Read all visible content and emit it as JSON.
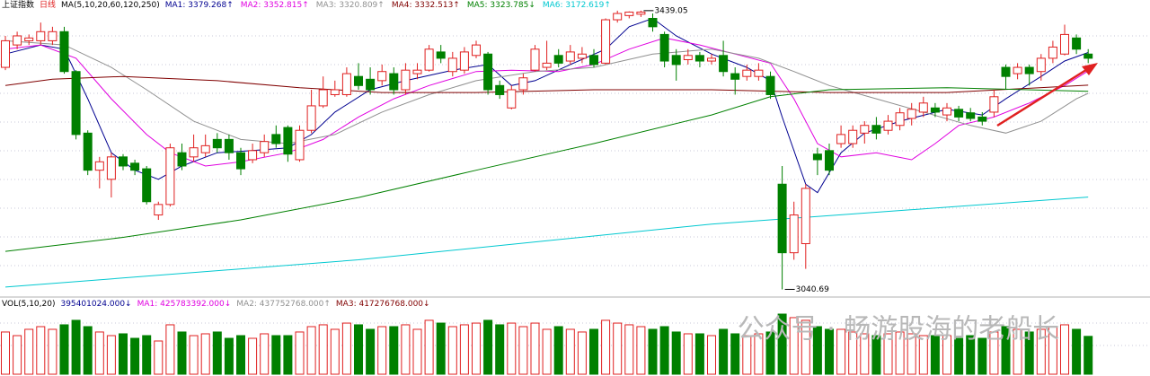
{
  "header": {
    "title": "上证指数",
    "period": "日线",
    "ma_params": "MA(5,10,20,60,120,250)"
  },
  "watermark": "公众号 · 畅游股海的老船长",
  "chart_data": [
    {
      "type": "candlestick",
      "ylim": [
        3031,
        3444
      ],
      "up_color": "#e02020",
      "down_color": "#008000",
      "high_label": "3439.05",
      "low_label": "3040.69",
      "open": [
        3358,
        3390,
        3396,
        3396,
        3396,
        3409,
        3352,
        3264,
        3211,
        3198,
        3230,
        3221,
        3213,
        3147,
        3162,
        3236,
        3230,
        3236,
        3255,
        3255,
        3236,
        3226,
        3236,
        3262,
        3272,
        3226,
        3268,
        3303,
        3319,
        3319,
        3345,
        3341,
        3339,
        3349,
        3326,
        3349,
        3354,
        3380,
        3352,
        3354,
        3375,
        3377,
        3332,
        3300,
        3326,
        3354,
        3358,
        3375,
        3367,
        3371,
        3375,
        3364,
        3426,
        3432,
        3434,
        3428,
        3405,
        3375,
        3369,
        3375,
        3367,
        3375,
        3349,
        3345,
        3345,
        3345,
        3191,
        3093,
        3106,
        3234,
        3239,
        3249,
        3249,
        3264,
        3275,
        3268,
        3275,
        3285,
        3294,
        3300,
        3290,
        3298,
        3293,
        3287,
        3294,
        3358,
        3349,
        3358,
        3352,
        3371,
        3377,
        3400,
        3377
      ],
      "high": [
        3403,
        3409,
        3405,
        3422,
        3416,
        3416,
        3354,
        3268,
        3230,
        3236,
        3234,
        3226,
        3217,
        3166,
        3249,
        3249,
        3262,
        3262,
        3264,
        3262,
        3243,
        3249,
        3262,
        3275,
        3275,
        3275,
        3326,
        3345,
        3339,
        3358,
        3364,
        3358,
        3362,
        3358,
        3364,
        3364,
        3390,
        3390,
        3380,
        3387,
        3396,
        3380,
        3339,
        3332,
        3349,
        3390,
        3396,
        3384,
        3390,
        3387,
        3384,
        3428,
        3439,
        3438,
        3439.05,
        3435,
        3409,
        3384,
        3384,
        3380,
        3377,
        3396,
        3358,
        3362,
        3364,
        3352,
        3217,
        3166,
        3191,
        3243,
        3249,
        3275,
        3275,
        3281,
        3287,
        3290,
        3300,
        3307,
        3316,
        3307,
        3307,
        3303,
        3300,
        3294,
        3326,
        3362,
        3364,
        3362,
        3377,
        3396,
        3419,
        3405,
        3384
      ],
      "low": [
        3354,
        3384,
        3390,
        3390,
        3390,
        3349,
        3255,
        3204,
        3185,
        3172,
        3211,
        3204,
        3162,
        3140,
        3159,
        3211,
        3223,
        3230,
        3236,
        3226,
        3204,
        3221,
        3230,
        3243,
        3223,
        3223,
        3264,
        3300,
        3316,
        3316,
        3326,
        3319,
        3332,
        3319,
        3319,
        3341,
        3352,
        3364,
        3345,
        3349,
        3371,
        3319,
        3313,
        3298,
        3319,
        3352,
        3354,
        3358,
        3362,
        3364,
        3358,
        3362,
        3422,
        3428,
        3430,
        3409,
        3358,
        3339,
        3362,
        3358,
        3362,
        3345,
        3319,
        3339,
        3339,
        3313,
        3040.69,
        3083,
        3070,
        3204,
        3204,
        3243,
        3243,
        3249,
        3255,
        3262,
        3268,
        3275,
        3287,
        3287,
        3281,
        3281,
        3281,
        3275,
        3287,
        3326,
        3341,
        3332,
        3339,
        3364,
        3375,
        3377,
        3364
      ],
      "close": [
        3396,
        3403,
        3400,
        3409,
        3409,
        3352,
        3262,
        3211,
        3223,
        3230,
        3217,
        3211,
        3166,
        3162,
        3243,
        3217,
        3243,
        3246,
        3243,
        3236,
        3213,
        3239,
        3252,
        3249,
        3234,
        3268,
        3303,
        3326,
        3326,
        3349,
        3332,
        3326,
        3352,
        3326,
        3354,
        3354,
        3384,
        3371,
        3371,
        3380,
        3390,
        3326,
        3319,
        3326,
        3343,
        3384,
        3364,
        3364,
        3380,
        3377,
        3362,
        3426,
        3435,
        3437,
        3437,
        3416,
        3367,
        3362,
        3375,
        3367,
        3371,
        3352,
        3341,
        3354,
        3354,
        3319,
        3093,
        3147,
        3185,
        3226,
        3211,
        3262,
        3268,
        3275,
        3264,
        3281,
        3293,
        3298,
        3307,
        3294,
        3300,
        3287,
        3285,
        3281,
        3316,
        3345,
        3358,
        3349,
        3371,
        3387,
        3405,
        3384,
        3371
      ],
      "series": [
        {
          "name": "MA1: 3379.268↑",
          "color": "#000090",
          "x": [
            0,
            3,
            5,
            7,
            9,
            11,
            13,
            15,
            18,
            21,
            24,
            26,
            28,
            31,
            34,
            38,
            41,
            43,
            45,
            48,
            51,
            53,
            55,
            57,
            60,
            63,
            65,
            66,
            68,
            69,
            71,
            73,
            76,
            80,
            83,
            85,
            88,
            90,
            92
          ],
          "values": [
            3377,
            3390,
            3384,
            3313,
            3236,
            3211,
            3198,
            3217,
            3236,
            3239,
            3243,
            3262,
            3294,
            3326,
            3339,
            3354,
            3362,
            3332,
            3339,
            3362,
            3384,
            3416,
            3428,
            3403,
            3377,
            3358,
            3339,
            3287,
            3191,
            3179,
            3236,
            3264,
            3281,
            3298,
            3290,
            3313,
            3345,
            3367,
            3379.268
          ]
        },
        {
          "name": "MA2: 3352.815↑",
          "color": "#e000e0",
          "x": [
            0,
            3,
            6,
            9,
            12,
            14,
            17,
            20,
            24,
            27,
            30,
            33,
            36,
            40,
            43,
            47,
            50,
            53,
            56,
            59,
            62,
            65,
            67,
            69,
            71,
            74,
            77,
            79,
            81,
            84,
            87,
            90,
            92
          ],
          "values": [
            3384,
            3390,
            3371,
            3313,
            3262,
            3236,
            3217,
            3223,
            3236,
            3255,
            3287,
            3313,
            3332,
            3352,
            3354,
            3352,
            3362,
            3384,
            3400,
            3390,
            3377,
            3364,
            3313,
            3249,
            3230,
            3236,
            3226,
            3249,
            3275,
            3287,
            3307,
            3332,
            3352.815
          ]
        },
        {
          "name": "MA3: 3320.809↑",
          "color": "#909090",
          "x": [
            0,
            5,
            9,
            12,
            16,
            20,
            24,
            28,
            32,
            36,
            40,
            45,
            50,
            55,
            60,
            64,
            67,
            70,
            74,
            78,
            82,
            85,
            88,
            91,
            92
          ],
          "values": [
            3396,
            3390,
            3358,
            3326,
            3281,
            3255,
            3249,
            3262,
            3294,
            3319,
            3339,
            3352,
            3358,
            3377,
            3384,
            3371,
            3352,
            3332,
            3313,
            3294,
            3275,
            3264,
            3281,
            3313,
            3320.809
          ]
        },
        {
          "name": "MA4: 3332.513↑",
          "color": "#800000",
          "x": [
            0,
            4,
            10,
            18,
            25,
            32,
            40,
            50,
            60,
            70,
            80,
            92
          ],
          "values": [
            3332,
            3341,
            3345,
            3339,
            3329,
            3322,
            3322,
            3326,
            3326,
            3322,
            3322,
            3332.513
          ]
        },
        {
          "name": "MA5: 3323.785↓",
          "color": "#008000",
          "x": [
            0,
            10,
            20,
            30,
            40,
            50,
            60,
            65,
            70,
            80,
            92
          ],
          "values": [
            3095,
            3115,
            3140,
            3172,
            3211,
            3249,
            3290,
            3316,
            3326,
            3329,
            3323.785
          ]
        },
        {
          "name": "MA6: 3172.619↑",
          "color": "#00c8d0",
          "x": [
            0,
            30,
            60,
            92
          ],
          "values": [
            3044,
            3083,
            3134,
            3172.619
          ]
        }
      ]
    },
    {
      "type": "bar",
      "title": "VOL(5,10,20)",
      "ylim": [
        0,
        750000000
      ],
      "legend": [
        {
          "text": "395401024.000↓",
          "color": "#000090"
        },
        {
          "text": "MA1: 425783392.000↓",
          "color": "#e000e0"
        },
        {
          "text": "MA2: 437752768.000↑",
          "color": "#909090"
        },
        {
          "text": "MA3: 417276768.000↓",
          "color": "#800000"
        }
      ],
      "values": [
        441000000,
        403000000,
        469000000,
        497000000,
        469000000,
        516000000,
        563000000,
        497000000,
        441000000,
        403000000,
        422000000,
        375000000,
        403000000,
        347000000,
        516000000,
        441000000,
        403000000,
        422000000,
        441000000,
        375000000,
        403000000,
        375000000,
        422000000,
        403000000,
        403000000,
        441000000,
        497000000,
        516000000,
        469000000,
        534000000,
        516000000,
        469000000,
        497000000,
        497000000,
        516000000,
        469000000,
        563000000,
        534000000,
        497000000,
        516000000,
        534000000,
        563000000,
        516000000,
        534000000,
        497000000,
        534000000,
        469000000,
        497000000,
        469000000,
        441000000,
        469000000,
        563000000,
        534000000,
        516000000,
        497000000,
        469000000,
        497000000,
        441000000,
        422000000,
        422000000,
        403000000,
        469000000,
        422000000,
        403000000,
        422000000,
        441000000,
        628000000,
        591000000,
        563000000,
        497000000,
        469000000,
        469000000,
        441000000,
        422000000,
        403000000,
        422000000,
        441000000,
        422000000,
        403000000,
        403000000,
        403000000,
        375000000,
        403000000,
        375000000,
        441000000,
        497000000,
        469000000,
        441000000,
        469000000,
        497000000,
        516000000,
        469000000,
        395401024
      ]
    }
  ]
}
